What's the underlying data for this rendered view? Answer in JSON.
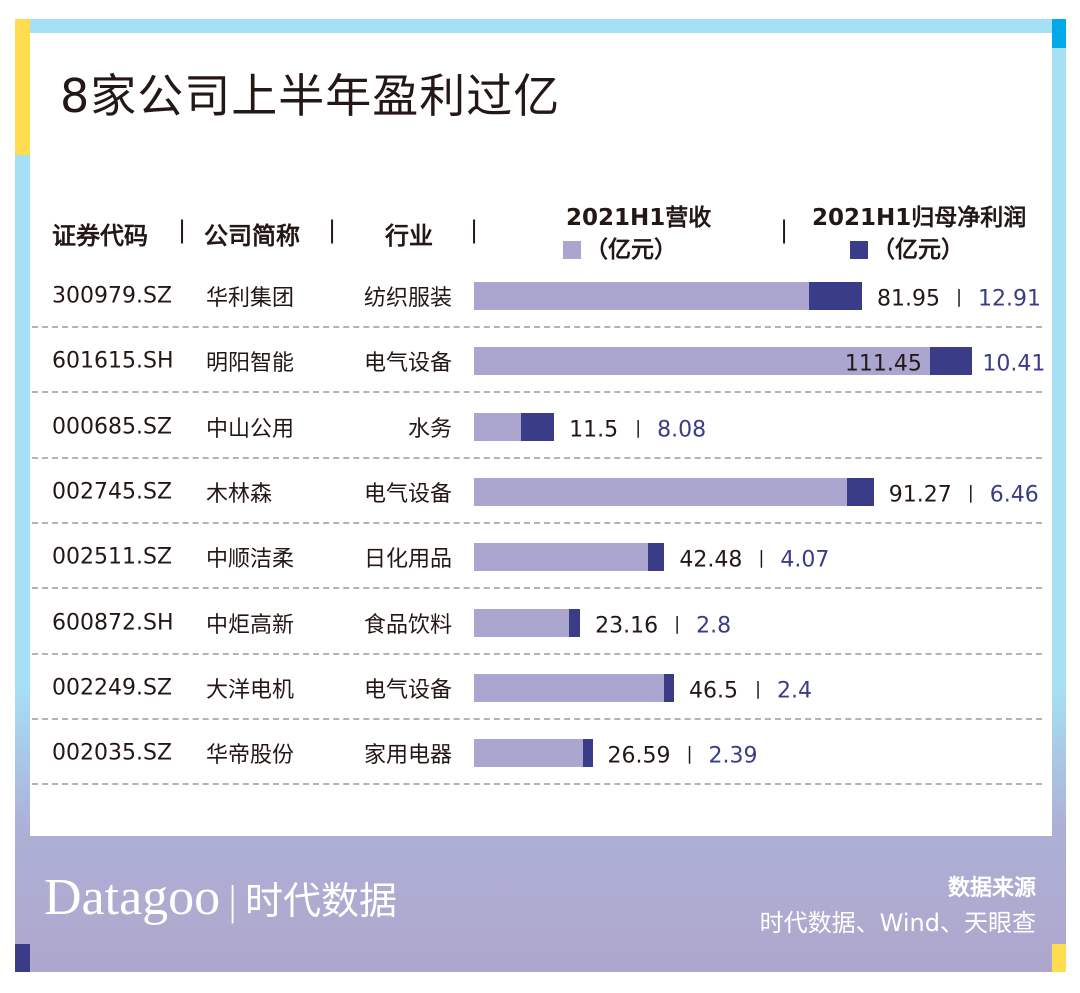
{
  "title": "8家公司上半年盈利过亿",
  "colors": {
    "revenue": "#aba6cf",
    "profit": "#3b3c87"
  },
  "chart_data": {
    "type": "bar",
    "stacked": true,
    "columns": [
      "证券代码",
      "公司简称",
      "行业"
    ],
    "revenue_label": "2021H1营收",
    "profit_label": "2021H1归母净利润",
    "unit": "（亿元）",
    "rows": [
      {
        "code": "300979.SZ",
        "name": "华利集团",
        "industry": "纺织服装",
        "revenue": "81.95",
        "profit": "12.91"
      },
      {
        "code": "601615.SH",
        "name": "明阳智能",
        "industry": "电气设备",
        "revenue": "111.45",
        "profit": "10.41"
      },
      {
        "code": "000685.SZ",
        "name": "中山公用",
        "industry": "水务",
        "revenue": "11.5",
        "profit": "8.08"
      },
      {
        "code": "002745.SZ",
        "name": "木林森",
        "industry": "电气设备",
        "revenue": "91.27",
        "profit": "6.46"
      },
      {
        "code": "002511.SZ",
        "name": "中顺洁柔",
        "industry": "日化用品",
        "revenue": "42.48",
        "profit": "4.07"
      },
      {
        "code": "600872.SH",
        "name": "中炬高新",
        "industry": "食品饮料",
        "revenue": "23.16",
        "profit": "2.8"
      },
      {
        "code": "002249.SZ",
        "name": "大洋电机",
        "industry": "电气设备",
        "revenue": "46.5",
        "profit": "2.4"
      },
      {
        "code": "002035.SZ",
        "name": "华帝股份",
        "industry": "家用电器",
        "revenue": "26.59",
        "profit": "2.39"
      }
    ]
  },
  "footer": {
    "logo": "Datagoo",
    "logo_cn": "时代数据",
    "source_label": "数据来源",
    "source": "时代数据、Wind、天眼查"
  }
}
